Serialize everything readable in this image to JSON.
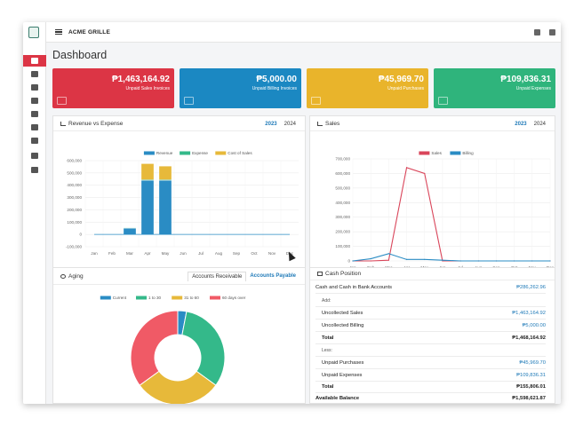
{
  "app": {
    "title": "ACME GRILLE"
  },
  "page": {
    "title": "Dashboard"
  },
  "sidebar": {
    "items": [
      {
        "icon": "dashboard-icon",
        "active": true
      },
      {
        "icon": "building-icon",
        "active": false
      },
      {
        "icon": "document-icon",
        "active": false
      },
      {
        "icon": "cart-icon",
        "active": false
      },
      {
        "icon": "card-icon",
        "active": false
      },
      {
        "icon": "book-icon",
        "active": false
      },
      {
        "icon": "inbox-icon",
        "active": false
      },
      {
        "icon": "bank-icon",
        "active": false
      },
      {
        "icon": "chart-icon",
        "active": false
      }
    ]
  },
  "cards": [
    {
      "amount": "₱1,463,164.92",
      "label": "Unpaid Sales Invoices",
      "color": "#dc3545",
      "icon": "register-icon"
    },
    {
      "amount": "₱5,000.00",
      "label": "Unpaid Billing Invoices",
      "color": "#1b88c2",
      "icon": "invoice-icon"
    },
    {
      "amount": "₱45,969.70",
      "label": "Unpaid Purchases",
      "color": "#e9b42b",
      "icon": "cart-icon"
    },
    {
      "amount": "₱109,836.31",
      "label": "Unpaid Expenses",
      "color": "#2fb47c",
      "icon": "money-icon"
    }
  ],
  "revenue_panel": {
    "title": "Revenue vs Expense",
    "tabs": [
      "2023",
      "2024"
    ],
    "active_tab": "2023"
  },
  "sales_panel": {
    "title": "Sales",
    "tabs": [
      "2023",
      "2024"
    ],
    "active_tab": "2023"
  },
  "aging_panel": {
    "title": "Aging",
    "tabs": [
      "Accounts Receivable",
      "Accounts Payable"
    ],
    "active_tab": "Accounts Receivable"
  },
  "cash_panel": {
    "title": "Cash Position",
    "rows": [
      {
        "label": "Cash and Cash in Bank Accounts",
        "value": "₱286,262.96",
        "indent": 0,
        "bold": false,
        "blue": true
      },
      {
        "label": "Add:",
        "value": "",
        "indent": 1,
        "bold": false,
        "blue": false
      },
      {
        "label": "Uncollected Sales",
        "value": "₱1,463,164.92",
        "indent": 1,
        "bold": false,
        "blue": true
      },
      {
        "label": "Uncollected Billing",
        "value": "₱5,000.00",
        "indent": 1,
        "bold": false,
        "blue": true
      },
      {
        "label": "Total",
        "value": "₱1,468,164.92",
        "indent": 1,
        "bold": true,
        "blue": false
      },
      {
        "label": "Less:",
        "value": "",
        "indent": 1,
        "bold": false,
        "blue": false
      },
      {
        "label": "Unpaid Purchases",
        "value": "₱45,969.70",
        "indent": 1,
        "bold": false,
        "blue": true
      },
      {
        "label": "Unpaid Expenses",
        "value": "₱109,836.31",
        "indent": 1,
        "bold": false,
        "blue": true
      },
      {
        "label": "Total",
        "value": "₱155,806.01",
        "indent": 1,
        "bold": true,
        "blue": false
      },
      {
        "label": "Available Balance",
        "value": "₱1,598,621.87",
        "indent": 0,
        "bold": true,
        "blue": false
      }
    ]
  },
  "chart_data": [
    {
      "type": "bar",
      "stacked": true,
      "categories": [
        "Jan",
        "Feb",
        "Mar",
        "Apr",
        "May",
        "Jun",
        "Jul",
        "Aug",
        "Sep",
        "Oct",
        "Nov",
        "Dec"
      ],
      "series": [
        {
          "name": "Revenue",
          "color": "#2a8cc4",
          "values": [
            0,
            0,
            50000,
            440000,
            440000,
            0,
            0,
            0,
            0,
            0,
            0,
            0
          ]
        },
        {
          "name": "Expense",
          "color": "#34b98a",
          "values": [
            0,
            0,
            3000,
            5000,
            5000,
            0,
            0,
            0,
            0,
            0,
            0,
            0
          ]
        },
        {
          "name": "Cost of Sales",
          "color": "#e7b93a",
          "values": [
            0,
            0,
            0,
            130000,
            110000,
            0,
            0,
            0,
            0,
            0,
            0,
            0
          ]
        }
      ],
      "line_values": [
        0,
        0,
        0,
        0,
        0,
        0,
        0,
        0,
        0,
        0,
        0,
        0
      ],
      "ylim": [
        -100000,
        600000
      ],
      "yticks": [
        "600,000",
        "500,000",
        "400,000",
        "300,000",
        "200,000",
        "100,000",
        "0",
        "-100,000"
      ],
      "ytick_values": [
        600000,
        500000,
        400000,
        300000,
        200000,
        100000,
        0,
        -100000
      ],
      "grid": true,
      "legend": "top"
    },
    {
      "type": "line",
      "categories": [
        "Jan",
        "Feb",
        "Mar",
        "Apr",
        "May",
        "Jun",
        "Jul",
        "Aug",
        "Sep",
        "Oct",
        "Nov",
        "Dec"
      ],
      "series": [
        {
          "name": "Sales",
          "color": "#d9455a",
          "values": [
            0,
            0,
            5000,
            640000,
            600000,
            0,
            0,
            0,
            0,
            0,
            0,
            0
          ]
        },
        {
          "name": "Billing",
          "color": "#2a8cc4",
          "values": [
            0,
            15000,
            50000,
            10000,
            10000,
            5000,
            0,
            0,
            0,
            0,
            0,
            0
          ]
        }
      ],
      "ylim": [
        0,
        700000
      ],
      "yticks": [
        "700,000",
        "600,000",
        "500,000",
        "400,000",
        "300,000",
        "200,000",
        "100,000",
        "0"
      ],
      "ytick_values": [
        700000,
        600000,
        500000,
        400000,
        300000,
        200000,
        100000,
        0
      ],
      "grid": true,
      "legend": "top"
    },
    {
      "type": "pie",
      "donut": true,
      "labels": [
        "Current",
        "1 to 30",
        "31 to 60",
        "60 days over"
      ],
      "colors": [
        "#2a8cc4",
        "#34b98a",
        "#e7b93a",
        "#f05a66"
      ],
      "values": [
        3,
        32,
        30,
        35
      ],
      "legend": "top"
    }
  ]
}
